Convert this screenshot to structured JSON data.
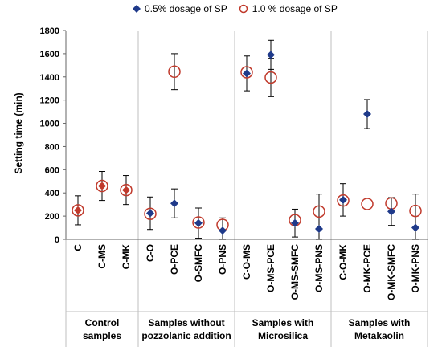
{
  "chart_data": {
    "type": "scatter",
    "ylabel": "Setting time (min)",
    "ylim": [
      0,
      1800
    ],
    "yticks": [
      0,
      200,
      400,
      600,
      800,
      1000,
      1200,
      1400,
      1600,
      1800
    ],
    "grid": "vertical-group-separators",
    "legend_position": "top",
    "categories": [
      "C",
      "C-MS",
      "C-MK",
      "C-O",
      "O-PCE",
      "O-SMFC",
      "O-PNS",
      "C-O-MS",
      "O-MS-PCE",
      "O-MS-SMFC",
      "O-MS-PNS",
      "C-O-MK",
      "O-MK-PCE",
      "O-MK-SMFC",
      "O-MK-PNS"
    ],
    "groups": [
      {
        "label_line1": "Control",
        "label_line2": "samples",
        "count": 3
      },
      {
        "label_line1": "Samples without",
        "label_line2": "pozzolanic addition",
        "count": 4
      },
      {
        "label_line1": "Samples with",
        "label_line2": "Microsilica",
        "count": 4
      },
      {
        "label_line1": "Samples with",
        "label_line2": "Metakaolin",
        "count": 4
      }
    ],
    "series": [
      {
        "name": "0.5% dosage of SP",
        "marker": "diamond",
        "color": "#1f3a8a",
        "values": [
          250,
          460,
          425,
          225,
          310,
          140,
          75,
          1430,
          1590,
          140,
          90,
          340,
          1080,
          240,
          100
        ],
        "error": [
          125,
          125,
          125,
          140,
          125,
          130,
          110,
          150,
          125,
          120,
          300,
          140,
          125,
          120,
          290
        ]
      },
      {
        "name": "1.0 % dosage of SP",
        "marker": "open-circle",
        "color": "#c0392b",
        "values": [
          250,
          460,
          425,
          220,
          1445,
          145,
          125,
          1440,
          1395,
          165,
          240,
          335,
          305,
          310,
          245
        ],
        "error": [
          0,
          0,
          0,
          0,
          155,
          0,
          0,
          0,
          165,
          0,
          0,
          0,
          0,
          0,
          0
        ]
      }
    ],
    "fill_colors": {
      "C": "#c0392b",
      "C-MS": "#c0392b",
      "C-MK": "#c0392b"
    }
  }
}
